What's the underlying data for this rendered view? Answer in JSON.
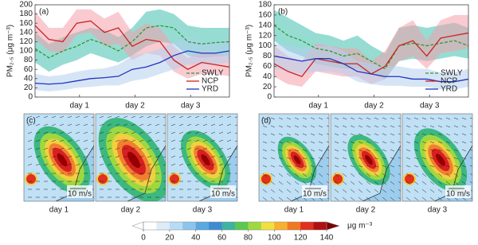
{
  "chart_data": [
    {
      "type": "line",
      "title": "(a)",
      "ylabel": "PM₂.₅ (μg m⁻³)",
      "x": [
        0,
        0.25,
        0.5,
        0.75,
        1,
        1.25,
        1.5,
        1.75,
        2,
        2.25,
        2.5,
        2.75,
        3,
        3.25,
        3.5
      ],
      "xlim": [
        0,
        3.5
      ],
      "xticks": [
        {
          "value": 0.8,
          "label": "day 1"
        },
        {
          "value": 1.8,
          "label": "day 2"
        },
        {
          "value": 2.8,
          "label": "day 3"
        }
      ],
      "ylim": [
        0,
        200
      ],
      "yticks": [
        0,
        20,
        40,
        60,
        80,
        100,
        120,
        140,
        160,
        180,
        200
      ],
      "legend": "lower right",
      "series": [
        {
          "name": "SWLY",
          "color": "#2e9a2e",
          "band_color": "#3fbfae",
          "dash": true,
          "values": [
            105,
            85,
            100,
            110,
            125,
            115,
            100,
            120,
            150,
            155,
            150,
            120,
            115,
            118,
            120
          ],
          "lower": [
            75,
            55,
            70,
            80,
            95,
            85,
            75,
            90,
            110,
            120,
            115,
            90,
            85,
            88,
            90
          ],
          "upper": [
            140,
            115,
            130,
            140,
            150,
            145,
            130,
            150,
            185,
            190,
            180,
            155,
            150,
            150,
            150
          ]
        },
        {
          "name": "NCP",
          "color": "#cc2222",
          "band_color": "#f4a0ac",
          "dash": false,
          "values": [
            155,
            125,
            120,
            160,
            165,
            140,
            150,
            110,
            125,
            120,
            80,
            60,
            75,
            70,
            65
          ],
          "lower": [
            125,
            100,
            95,
            135,
            140,
            110,
            115,
            80,
            95,
            90,
            55,
            40,
            50,
            50,
            45
          ],
          "upper": [
            185,
            150,
            150,
            190,
            190,
            170,
            185,
            140,
            160,
            150,
            110,
            85,
            100,
            95,
            90
          ]
        },
        {
          "name": "YRD",
          "color": "#2233bb",
          "band_color": "#b4d0ee",
          "dash": false,
          "values": [
            30,
            28,
            30,
            35,
            40,
            42,
            45,
            60,
            65,
            75,
            90,
            100,
            95,
            95,
            100
          ],
          "lower": [
            15,
            12,
            15,
            20,
            22,
            25,
            25,
            35,
            40,
            50,
            60,
            70,
            70,
            70,
            75
          ],
          "upper": [
            50,
            45,
            48,
            55,
            60,
            62,
            70,
            90,
            95,
            105,
            120,
            130,
            120,
            118,
            125
          ]
        }
      ]
    },
    {
      "type": "line",
      "title": "(b)",
      "ylabel": "PM₂.₅ (μg m⁻³)",
      "x": [
        0,
        0.25,
        0.5,
        0.75,
        1,
        1.25,
        1.5,
        1.75,
        2,
        2.25,
        2.5,
        2.75,
        3,
        3.25,
        3.5
      ],
      "xlim": [
        0,
        3.5
      ],
      "xticks": [
        {
          "value": 0.8,
          "label": "day 1"
        },
        {
          "value": 1.8,
          "label": "day 2"
        },
        {
          "value": 2.8,
          "label": "day 3"
        }
      ],
      "ylim": [
        0,
        180
      ],
      "yticks": [
        0,
        20,
        40,
        60,
        80,
        100,
        120,
        140,
        160,
        180
      ],
      "legend": "lower right",
      "series": [
        {
          "name": "SWLY",
          "color": "#2e9a2e",
          "band_color": "#3fbfae",
          "dash": true,
          "values": [
            140,
            120,
            110,
            95,
            90,
            80,
            85,
            70,
            55,
            100,
            105,
            100,
            105,
            110,
            100
          ],
          "lower": [
            110,
            90,
            80,
            65,
            60,
            55,
            55,
            45,
            35,
            70,
            75,
            70,
            75,
            80,
            75
          ],
          "upper": [
            170,
            155,
            140,
            125,
            120,
            110,
            120,
            100,
            85,
            135,
            140,
            135,
            140,
            145,
            135
          ]
        },
        {
          "name": "NCP",
          "color": "#cc2222",
          "band_color": "#f4a0ac",
          "dash": false,
          "values": [
            65,
            50,
            40,
            75,
            70,
            65,
            65,
            45,
            60,
            100,
            110,
            80,
            115,
            120,
            125
          ],
          "lower": [
            40,
            25,
            20,
            50,
            45,
            40,
            40,
            25,
            35,
            70,
            80,
            55,
            85,
            90,
            95
          ],
          "upper": [
            100,
            80,
            70,
            105,
            100,
            95,
            95,
            70,
            90,
            135,
            150,
            110,
            150,
            160,
            160
          ]
        },
        {
          "name": "YRD",
          "color": "#2233bb",
          "band_color": "#b4d0ee",
          "dash": false,
          "values": [
            80,
            75,
            70,
            75,
            75,
            65,
            50,
            45,
            40,
            40,
            35,
            35,
            30,
            30,
            35
          ],
          "lower": [
            55,
            50,
            45,
            50,
            50,
            45,
            30,
            25,
            22,
            22,
            20,
            20,
            15,
            15,
            20
          ],
          "upper": [
            105,
            100,
            95,
            100,
            100,
            90,
            70,
            65,
            60,
            60,
            55,
            55,
            48,
            48,
            55
          ]
        }
      ]
    }
  ],
  "maps": [
    {
      "label": "(c)",
      "days": [
        "day 1",
        "day 2",
        "day 3"
      ]
    },
    {
      "label": "(d)",
      "days": [
        "day 1",
        "day 2",
        "day 3"
      ]
    }
  ],
  "wind_scale": "10 m/s",
  "colorbar": {
    "lim": [
      0,
      140
    ],
    "ticks": [
      0,
      20,
      40,
      60,
      80,
      100,
      120,
      140
    ],
    "unit": "μg m⁻³",
    "colors": [
      "#ffffff",
      "#dcecf8",
      "#b8dcf4",
      "#8cc4ec",
      "#5aa8e0",
      "#3c8cd0",
      "#3cb4a0",
      "#5cc850",
      "#a0d840",
      "#f0e040",
      "#f8b030",
      "#f07820",
      "#e03020",
      "#b01010"
    ]
  }
}
